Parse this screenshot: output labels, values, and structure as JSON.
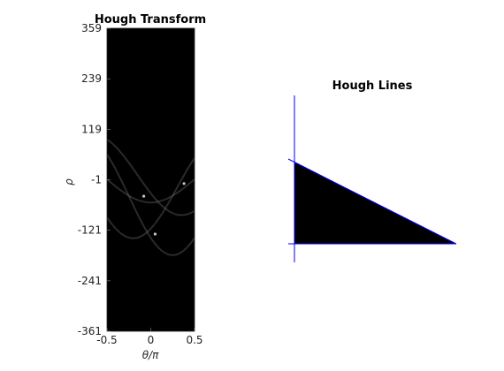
{
  "chart_data": [
    {
      "type": "heatmap",
      "title": "Hough Transform",
      "xlabel": "θ/π",
      "ylabel": "ρ",
      "xlim": [
        -0.5,
        0.5
      ],
      "ylim": [
        -361,
        359
      ],
      "x_ticks": [
        -0.5,
        0,
        0.5
      ],
      "x_tick_labels": [
        "-0.5",
        "0",
        "0.5"
      ],
      "y_ticks": [
        359,
        239,
        119,
        -1,
        -121,
        -241,
        -361
      ],
      "y_tick_labels": [
        "359",
        "239",
        "119",
        "-1",
        "-121",
        "-241",
        "-361"
      ],
      "colormap": "gray",
      "background": "#000000",
      "sinusoids": [
        {
          "rho0": 0,
          "phase": 0,
          "amp": 55
        },
        {
          "rho0": 10,
          "phase": 0.35,
          "amp": 95
        },
        {
          "rho0": -20,
          "phase": -0.2,
          "amp": 120
        },
        {
          "rho0": -40,
          "phase": 0.25,
          "amp": 140
        }
      ],
      "peaks": [
        {
          "theta": -0.08,
          "rho": -40
        },
        {
          "theta": 0.05,
          "rho": -130
        },
        {
          "theta": 0.38,
          "rho": -10
        }
      ]
    },
    {
      "type": "diagram",
      "title": "Hough Lines",
      "shape_fill": "#000000",
      "line_color": "#0000ff"
    }
  ]
}
